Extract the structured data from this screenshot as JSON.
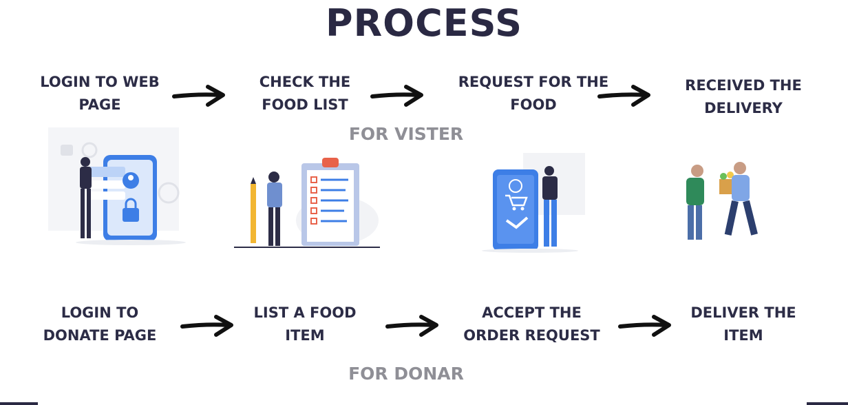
{
  "title": "PROCESS",
  "visitor": {
    "section_label": "FOR VISTER",
    "steps": [
      {
        "label": "LOGIN TO WEB\nPAGE",
        "illustration": "login-phone-icon"
      },
      {
        "label": "CHECK THE\nFOOD LIST",
        "illustration": "clipboard-checklist-icon"
      },
      {
        "label": "REQUEST FOR THE\nFOOD",
        "illustration": "shopping-cart-phone-icon"
      },
      {
        "label": "RECEIVED THE\nDELIVERY",
        "illustration": "delivery-handover-icon"
      }
    ]
  },
  "donor": {
    "section_label": "FOR DONAR",
    "steps": [
      {
        "label": "LOGIN TO\nDONATE PAGE"
      },
      {
        "label": "LIST A FOOD\nITEM"
      },
      {
        "label": "ACCEPT THE\nORDER REQUEST"
      },
      {
        "label": "DELIVER THE\nITEM"
      }
    ]
  },
  "colors": {
    "heading": "#2a2943",
    "section_label": "#8f8f96",
    "accent_blue": "#3d7ee6",
    "accent_orange": "#e8624a",
    "arrow": "#111111"
  }
}
